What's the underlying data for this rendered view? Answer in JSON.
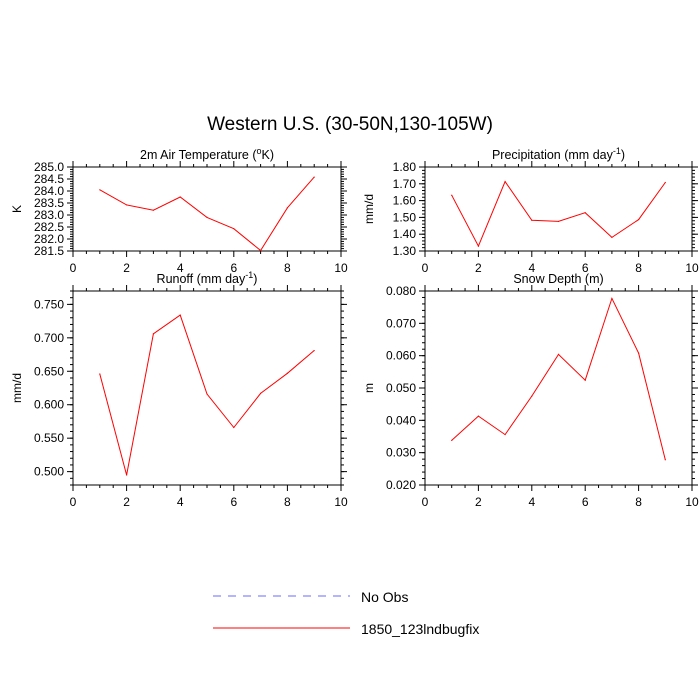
{
  "figure": {
    "title": "Western U.S. (30-50N,130-105W)"
  },
  "legend": {
    "placement": "bottom-center",
    "entries": [
      {
        "label": "No Obs",
        "color": "#6b6bff",
        "style": "dashed"
      },
      {
        "label": "1850_123lndbugfix",
        "color": "#ff0000",
        "style": "solid"
      }
    ]
  },
  "chart_data": [
    {
      "type": "line",
      "title": "2m Air Temperature",
      "title_unit": "(",
      "title_unit_sup": "o",
      "title_unit_rest": "K)",
      "ylabel": "K",
      "xlim": [
        0,
        10
      ],
      "ylim": [
        281.5,
        285.0
      ],
      "xticks": [
        "0",
        "2",
        "4",
        "6",
        "8",
        "10"
      ],
      "yticks": [
        "281.5",
        "282.0",
        "282.5",
        "283.0",
        "283.5",
        "284.0",
        "284.5",
        "285.0"
      ],
      "x": [
        1,
        2,
        3,
        4,
        5,
        6,
        7,
        8,
        9
      ],
      "series": [
        {
          "color": "#ff0000",
          "values": [
            284.05,
            283.42,
            283.2,
            283.75,
            282.9,
            282.43,
            281.52,
            283.3,
            284.58
          ]
        }
      ]
    },
    {
      "type": "line",
      "title": "Precipitation",
      "title_unit": "(mm day",
      "title_unit_sup": "-1",
      "title_unit_rest": ")",
      "ylabel": "mm/d",
      "xlim": [
        0,
        10
      ],
      "ylim": [
        1.3,
        1.8
      ],
      "xticks": [
        "0",
        "2",
        "4",
        "6",
        "8",
        "10"
      ],
      "yticks": [
        "1.30",
        "1.40",
        "1.50",
        "1.60",
        "1.70",
        "1.80"
      ],
      "x": [
        1,
        2,
        3,
        4,
        5,
        6,
        7,
        8,
        9
      ],
      "series": [
        {
          "color": "#ff0000",
          "values": [
            1.632,
            1.329,
            1.713,
            1.483,
            1.476,
            1.528,
            1.381,
            1.487,
            1.708
          ]
        }
      ]
    },
    {
      "type": "line",
      "title": "Runoff",
      "title_unit": "(mm day",
      "title_unit_sup": "-1",
      "title_unit_rest": ")",
      "ylabel": "mm/d",
      "xlim": [
        0,
        10
      ],
      "ylim": [
        0.48,
        0.77
      ],
      "xticks": [
        "0",
        "2",
        "4",
        "6",
        "8",
        "10"
      ],
      "yticks": [
        "0.500",
        "0.550",
        "0.600",
        "0.650",
        "0.700",
        "0.750"
      ],
      "x": [
        1,
        2,
        3,
        4,
        5,
        6,
        7,
        8,
        9
      ],
      "series": [
        {
          "color": "#ff0000",
          "values": [
            0.646,
            0.495,
            0.706,
            0.734,
            0.616,
            0.566,
            0.617,
            0.647,
            0.681
          ]
        }
      ]
    },
    {
      "type": "line",
      "title": "Snow Depth",
      "title_unit": "(m)",
      "title_unit_sup": "",
      "title_unit_rest": "",
      "ylabel": "m",
      "xlim": [
        0,
        10
      ],
      "ylim": [
        0.02,
        0.08
      ],
      "xticks": [
        "0",
        "2",
        "4",
        "6",
        "8",
        "10"
      ],
      "yticks": [
        "0.020",
        "0.030",
        "0.040",
        "0.050",
        "0.060",
        "0.070",
        "0.080"
      ],
      "x": [
        1,
        2,
        3,
        4,
        5,
        6,
        7,
        8,
        9
      ],
      "series": [
        {
          "color": "#ff0000",
          "values": [
            0.0338,
            0.0413,
            0.0356,
            0.0475,
            0.0604,
            0.0524,
            0.0777,
            0.0608,
            0.0278
          ]
        }
      ]
    }
  ]
}
